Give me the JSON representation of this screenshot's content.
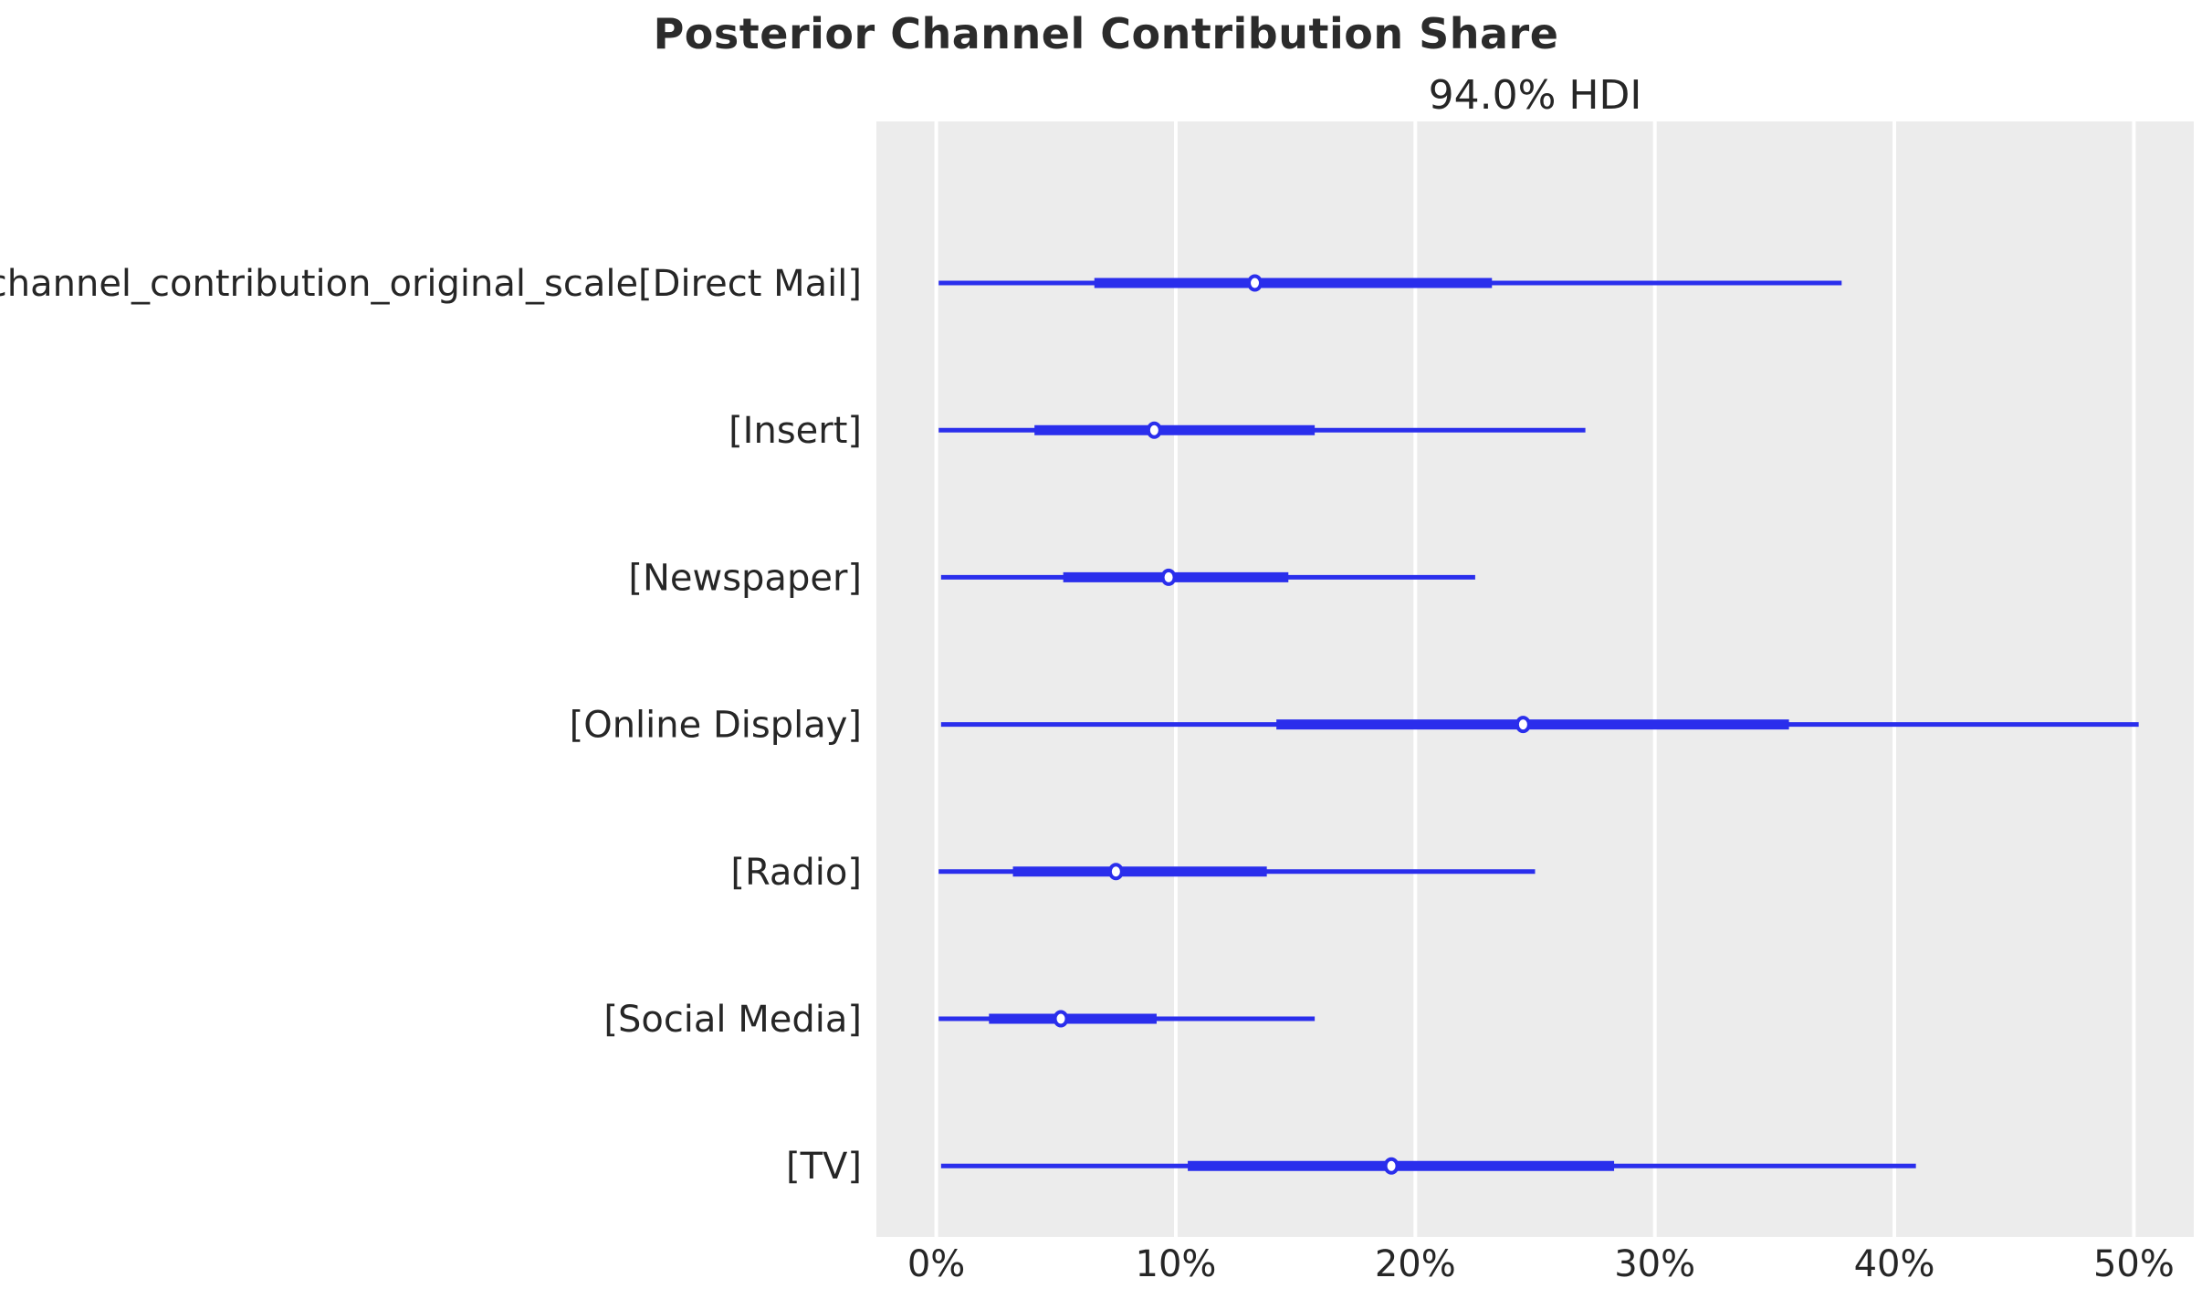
{
  "figure": {
    "kind": "arviz-forest-plot"
  },
  "chart_data": {
    "type": "forest",
    "title": "Posterior Channel Contribution Share",
    "subtitle": "94.0% HDI",
    "hdi_probability": "94.0%",
    "orientation": "horizontal",
    "legend_position": "none",
    "grid": "vertical",
    "x_axis": {
      "tick_values": [
        0,
        10,
        20,
        30,
        40,
        50
      ],
      "tick_labels": [
        "0%",
        "10%",
        "20%",
        "30%",
        "40%",
        "50%"
      ],
      "range": [
        -2.5,
        52.5
      ],
      "unit": "percent"
    },
    "rows": [
      {
        "label": "channel_contribution_original_scale[Direct Mail]",
        "hdi_low": 0.1,
        "quartile_low": 6.6,
        "median": 13.3,
        "quartile_high": 23.2,
        "hdi_high": 37.8
      },
      {
        "label": "[Insert]",
        "hdi_low": 0.1,
        "quartile_low": 4.1,
        "median": 9.1,
        "quartile_high": 15.8,
        "hdi_high": 27.1
      },
      {
        "label": "[Newspaper]",
        "hdi_low": 0.2,
        "quartile_low": 5.3,
        "median": 9.7,
        "quartile_high": 14.7,
        "hdi_high": 22.5
      },
      {
        "label": "[Online Display]",
        "hdi_low": 0.2,
        "quartile_low": 14.2,
        "median": 24.5,
        "quartile_high": 35.6,
        "hdi_high": 50.2
      },
      {
        "label": "[Radio]",
        "hdi_low": 0.1,
        "quartile_low": 3.2,
        "median": 7.5,
        "quartile_high": 13.8,
        "hdi_high": 25.0
      },
      {
        "label": "[Social Media]",
        "hdi_low": 0.1,
        "quartile_low": 2.2,
        "median": 5.2,
        "quartile_high": 9.2,
        "hdi_high": 15.8
      },
      {
        "label": "[TV]",
        "hdi_low": 0.2,
        "quartile_low": 10.5,
        "median": 19.0,
        "quartile_high": 28.3,
        "hdi_high": 40.9
      }
    ],
    "colors": {
      "series_line": "#2a2eec",
      "marker_fill": "#ffffff",
      "plot_background": "#ececec",
      "grid_line": "#ffffff",
      "figure_background": "#ffffff",
      "title_text": "#2b2b2b",
      "tick_text": "#262626"
    }
  }
}
